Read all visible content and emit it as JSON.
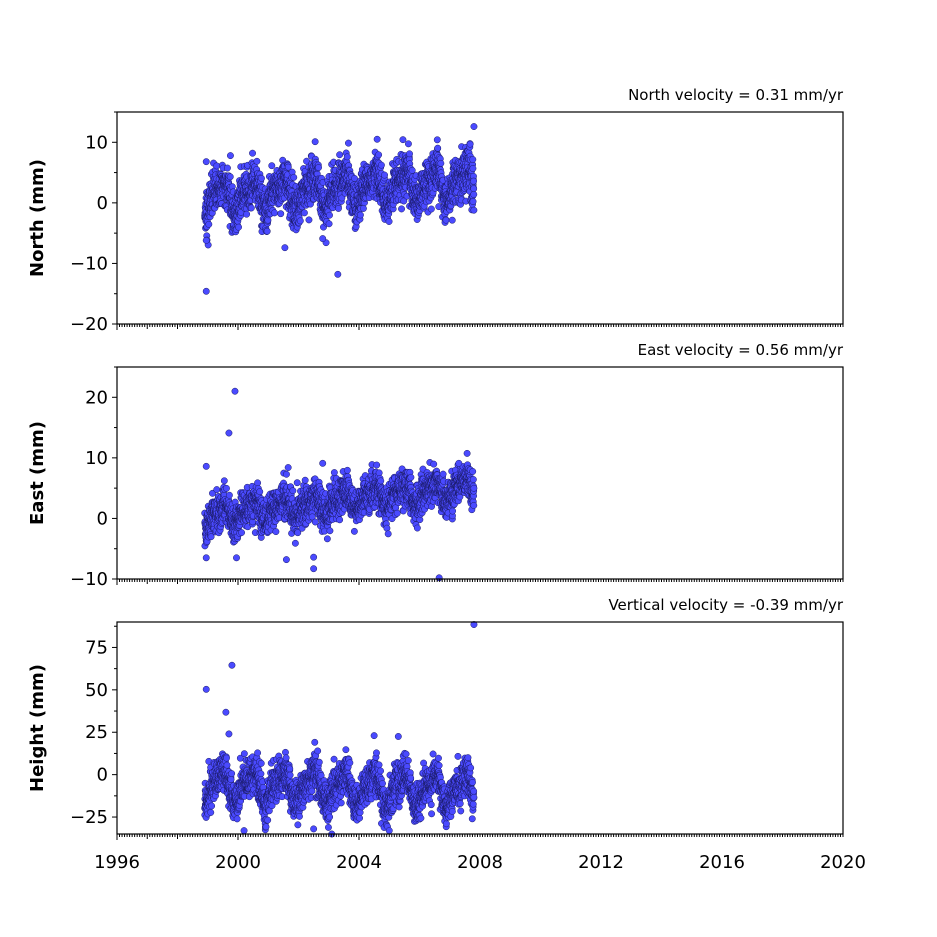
{
  "chart_data": [
    {
      "type": "scatter",
      "title": "",
      "annotation": "North velocity = 0.31 mm/yr",
      "ylabel": "North (mm)",
      "xlim": [
        1996,
        2020
      ],
      "ylim": [
        -20,
        15
      ],
      "y_ticks": [
        -20,
        -10,
        0,
        10
      ],
      "marker_color": "#4a4aff",
      "marker_edge_color": "#1a1a66",
      "time_span": [
        1998.9,
        2007.8
      ],
      "trend_per_yr": 0.31,
      "intercept": 0.8,
      "seasonal_amplitude": 2.2,
      "noise": 1.8,
      "outliers": [
        [
          1998.95,
          -14.6
        ],
        [
          2003.3,
          -11.8
        ],
        [
          2002.55,
          10.1
        ],
        [
          2004.6,
          10.5
        ],
        [
          2007.8,
          12.6
        ],
        [
          1998.95,
          6.8
        ],
        [
          1999.75,
          7.8
        ],
        [
          2001.55,
          -7.4
        ],
        [
          2002.8,
          -5.9
        ],
        [
          1998.95,
          -6.2
        ]
      ]
    },
    {
      "type": "scatter",
      "title": "",
      "annotation": "East velocity = 0.56 mm/yr",
      "ylabel": "East (mm)",
      "xlim": [
        1996,
        2020
      ],
      "ylim": [
        -10,
        25
      ],
      "y_ticks": [
        -10,
        0,
        10,
        20
      ],
      "marker_color": "#4a4aff",
      "marker_edge_color": "#1a1a66",
      "time_span": [
        1998.9,
        2007.8
      ],
      "trend_per_yr": 0.56,
      "intercept": 0.3,
      "seasonal_amplitude": 1.4,
      "noise": 1.5,
      "outliers": [
        [
          1999.9,
          21.0
        ],
        [
          1999.7,
          14.1
        ],
        [
          1998.95,
          8.6
        ],
        [
          2002.8,
          9.1
        ],
        [
          2007.3,
          9.1
        ],
        [
          1998.95,
          -6.5
        ],
        [
          1999.95,
          -6.5
        ],
        [
          2001.6,
          -6.8
        ],
        [
          2002.5,
          -6.4
        ],
        [
          2002.5,
          -8.3
        ],
        [
          2006.65,
          -9.8
        ]
      ]
    },
    {
      "type": "scatter",
      "title": "",
      "annotation": "Vertical velocity = -0.39 mm/yr",
      "ylabel": "Height (mm)",
      "xlim": [
        1996,
        2020
      ],
      "ylim": [
        -35,
        90
      ],
      "y_ticks": [
        -25,
        0,
        25,
        50,
        75
      ],
      "marker_color": "#4a4aff",
      "marker_edge_color": "#1a1a66",
      "time_span": [
        1998.9,
        2007.8
      ],
      "trend_per_yr": -0.39,
      "intercept": -6,
      "seasonal_amplitude": 8,
      "noise": 5.5,
      "outliers": [
        [
          1998.95,
          50.3
        ],
        [
          1999.8,
          64.5
        ],
        [
          1999.6,
          36.8
        ],
        [
          2007.8,
          88.5
        ],
        [
          1999.7,
          24.0
        ],
        [
          2004.5,
          23.0
        ],
        [
          2005.3,
          22.5
        ],
        [
          2000.2,
          -33.0
        ],
        [
          2002.5,
          -32.0
        ],
        [
          2003.1,
          -35.0
        ],
        [
          2005.0,
          -33.0
        ]
      ]
    }
  ],
  "x_axis": {
    "tick_labels": [
      "1996",
      "2000",
      "2004",
      "2008",
      "2012",
      "2016",
      "2020"
    ],
    "tick_values": [
      1996,
      2000,
      2004,
      2008,
      2012,
      2016,
      2020
    ],
    "minor_tick_step": 0.0833333
  }
}
